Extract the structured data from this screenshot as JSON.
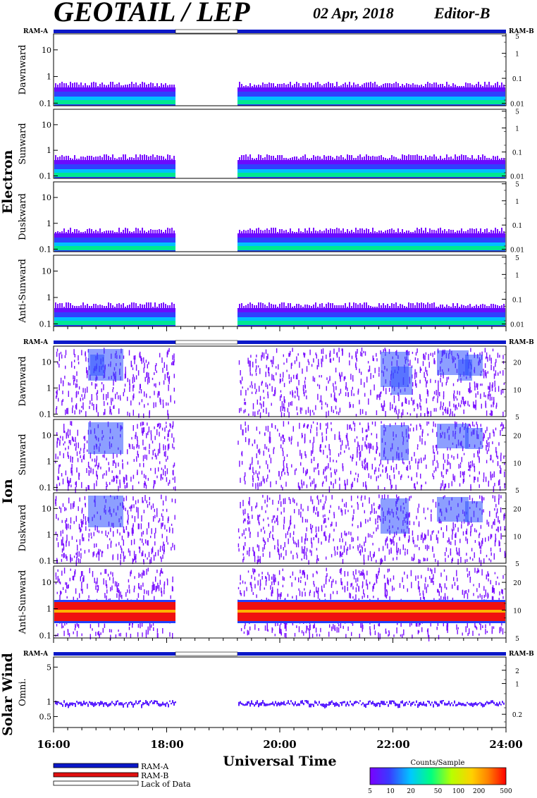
{
  "header": {
    "title": "GEOTAIL / LEP",
    "date": "02 Apr, 2018",
    "editor": "Editor-B"
  },
  "colors": {
    "ram_a": "#0b18c8",
    "ram_b": "#e01010",
    "lack": "#ffffff",
    "colorbar": [
      "#7a00ff",
      "#3a3aff",
      "#00c8ff",
      "#00ff80",
      "#b8ff00",
      "#ffd000",
      "#ff8000",
      "#ff0000"
    ]
  },
  "ram_labels": {
    "left": "RAM-A",
    "right": "RAM-B"
  },
  "sections": [
    {
      "name": "Electron",
      "panels": [
        "Dawnward",
        "Sunward",
        "Duskward",
        "Anti-Sunward"
      ]
    },
    {
      "name": "Ion",
      "panels": [
        "Dawnward",
        "Sunward",
        "Duskward",
        "Anti-Sunward"
      ]
    },
    {
      "name": "Solar Wind",
      "panels": [
        "Omni."
      ]
    }
  ],
  "axes": {
    "electron_left_ticks": [
      "10",
      "1",
      "0.1"
    ],
    "electron_right_ticks": [
      "5",
      "1",
      "0.1",
      "0.01"
    ],
    "ion_left_ticks": [
      "10",
      "1",
      "0.1"
    ],
    "ion_right_ticks": [
      "20",
      "10",
      "5"
    ],
    "sw_left_ticks": [
      "5",
      "1",
      "0.5"
    ],
    "sw_right_ticks": [
      "2",
      "1",
      "0.2"
    ],
    "x_ticks": [
      "16:00",
      "18:00",
      "20:00",
      "22:00",
      "24:00"
    ],
    "xlabel": "Universal Time"
  },
  "legend": {
    "ram_a": "RAM-A",
    "ram_b": "RAM-B",
    "lack": "Lack of Data",
    "colorbar_title": "Counts/Sample",
    "colorbar_ticks": [
      "5",
      "10",
      "20",
      "50",
      "100",
      "200",
      "500"
    ]
  },
  "chart_data": {
    "type": "heatmap",
    "title": "GEOTAIL / LEP",
    "xlabel": "Universal Time",
    "x_range": [
      "16:00",
      "24:00"
    ],
    "data_gap": [
      "18:10",
      "19:15"
    ],
    "mode_bar": [
      {
        "mode": "RAM-A",
        "from": "16:00",
        "to": "18:10"
      },
      {
        "mode": "Lack of Data",
        "from": "18:10",
        "to": "19:15"
      },
      {
        "mode": "RAM-A",
        "from": "19:15",
        "to": "24:00"
      }
    ],
    "electron_left_range": [
      0.08,
      40
    ],
    "electron_right_range": [
      0.008,
      6
    ],
    "ion_left_range": [
      0.08,
      40
    ],
    "ion_right_range": [
      5,
      30
    ],
    "sw_left_range": [
      0.3,
      8
    ],
    "colorbar_range": [
      5,
      500
    ],
    "colorbar_unit": "Counts/Sample"
  }
}
